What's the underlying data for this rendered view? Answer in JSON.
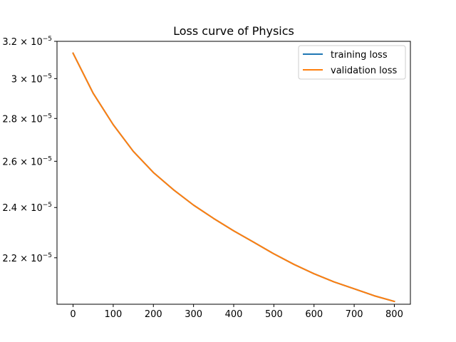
{
  "chart_data": {
    "type": "line",
    "title": "Loss curve of Physics",
    "xlabel": "",
    "ylabel": "",
    "yscale": "log",
    "xlim": [
      -40,
      840
    ],
    "ylim": [
      2.03e-05,
      3.2e-05
    ],
    "xticks": [
      0,
      100,
      200,
      300,
      400,
      500,
      600,
      700,
      800
    ],
    "yticks": [
      {
        "value": 2.2e-05,
        "mantissa": "2.2",
        "exp": "−5"
      },
      {
        "value": 2.4e-05,
        "mantissa": "2.4",
        "exp": "−5"
      },
      {
        "value": 2.6e-05,
        "mantissa": "2.6",
        "exp": "−5"
      },
      {
        "value": 2.8e-05,
        "mantissa": "2.8",
        "exp": "−5"
      },
      {
        "value": 3e-05,
        "mantissa": "3",
        "exp": "−5"
      },
      {
        "value": 3.2e-05,
        "mantissa": "3.2",
        "exp": "−5"
      }
    ],
    "grid": false,
    "legend_position": "top-right",
    "x": [
      0,
      50,
      100,
      150,
      200,
      250,
      300,
      350,
      400,
      450,
      500,
      550,
      600,
      650,
      700,
      750,
      800
    ],
    "series": [
      {
        "name": "training loss",
        "color": "#1f77b4",
        "values": [
          3.135e-05,
          2.925e-05,
          2.77e-05,
          2.645e-05,
          2.55e-05,
          2.475e-05,
          2.41e-05,
          2.355e-05,
          2.305e-05,
          2.26e-05,
          2.215e-05,
          2.175e-05,
          2.14e-05,
          2.11e-05,
          2.085e-05,
          2.06e-05,
          2.04e-05
        ]
      },
      {
        "name": "validation loss",
        "color": "#ff7f0e",
        "values": [
          3.135e-05,
          2.925e-05,
          2.77e-05,
          2.645e-05,
          2.55e-05,
          2.475e-05,
          2.41e-05,
          2.355e-05,
          2.305e-05,
          2.26e-05,
          2.215e-05,
          2.175e-05,
          2.14e-05,
          2.11e-05,
          2.085e-05,
          2.06e-05,
          2.04e-05
        ]
      }
    ]
  }
}
